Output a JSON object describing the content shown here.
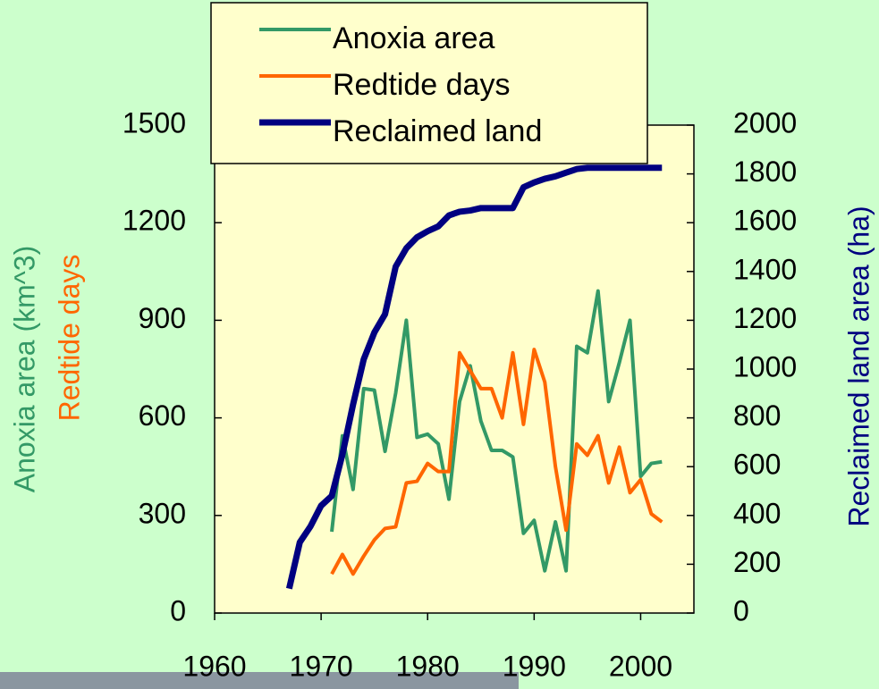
{
  "chart_data": {
    "type": "line",
    "xlim": [
      1960,
      2005
    ],
    "xticks": [
      1960,
      1970,
      1980,
      1990,
      2000
    ],
    "ylim": [
      0,
      1500
    ],
    "yticks": [
      0,
      300,
      600,
      900,
      1200,
      1500
    ],
    "y2lim": [
      0,
      2000
    ],
    "y2ticks": [
      0,
      200,
      400,
      600,
      800,
      1000,
      1200,
      1400,
      1600,
      1800,
      2000
    ],
    "ylabel": "Anoxia area (km^3)",
    "ylabel2": "Redtide days",
    "y2label": "Reclaimed land area (ha)",
    "series": [
      {
        "name": "Anoxia area",
        "color": "#339966",
        "x": [
          1971,
          1972,
          1973,
          1974,
          1975,
          1976,
          1977,
          1978,
          1979,
          1980,
          1981,
          1982,
          1983,
          1984,
          1985,
          1986,
          1987,
          1988,
          1989,
          1990,
          1991,
          1992,
          1993,
          1994,
          1995,
          1996,
          1997,
          1998,
          1999,
          2000,
          2001,
          2002
        ],
        "values": [
          250,
          545,
          380,
          690,
          685,
          497,
          676,
          900,
          540,
          550,
          520,
          350,
          650,
          760,
          590,
          500,
          500,
          480,
          245,
          285,
          130,
          280,
          130,
          820,
          800,
          990,
          650,
          770,
          900,
          420,
          460,
          465
        ]
      },
      {
        "name": "Redtide days",
        "color": "#ff6600",
        "x": [
          1971,
          1972,
          1973,
          1974,
          1975,
          1976,
          1977,
          1978,
          1979,
          1980,
          1981,
          1982,
          1983,
          1984,
          1985,
          1986,
          1987,
          1988,
          1989,
          1990,
          1991,
          1992,
          1993,
          1994,
          1995,
          1996,
          1997,
          1998,
          1999,
          2000,
          2001,
          2002
        ],
        "values": [
          120,
          180,
          120,
          175,
          225,
          260,
          265,
          400,
          405,
          460,
          435,
          435,
          800,
          745,
          690,
          690,
          600,
          800,
          580,
          810,
          710,
          450,
          255,
          520,
          485,
          545,
          400,
          510,
          370,
          410,
          305,
          280
        ]
      },
      {
        "name": "Reclaimed land",
        "color": "#000080",
        "axis": "y2",
        "x": [
          1967,
          1968,
          1969,
          1970,
          1971,
          1972,
          1973,
          1974,
          1975,
          1976,
          1977,
          1978,
          1979,
          1980,
          1981,
          1982,
          1983,
          1984,
          1985,
          1986,
          1987,
          1988,
          1989,
          1990,
          1991,
          1992,
          1993,
          1994,
          1995,
          1996,
          1997,
          1998,
          1999,
          2000,
          2001,
          2002
        ],
        "values": [
          100,
          290,
          355,
          440,
          480,
          650,
          855,
          1040,
          1150,
          1225,
          1420,
          1495,
          1540,
          1565,
          1585,
          1630,
          1645,
          1650,
          1660,
          1660,
          1660,
          1660,
          1745,
          1765,
          1780,
          1790,
          1805,
          1820,
          1825,
          1825,
          1825,
          1825,
          1825,
          1825,
          1825,
          1825
        ]
      }
    ]
  }
}
